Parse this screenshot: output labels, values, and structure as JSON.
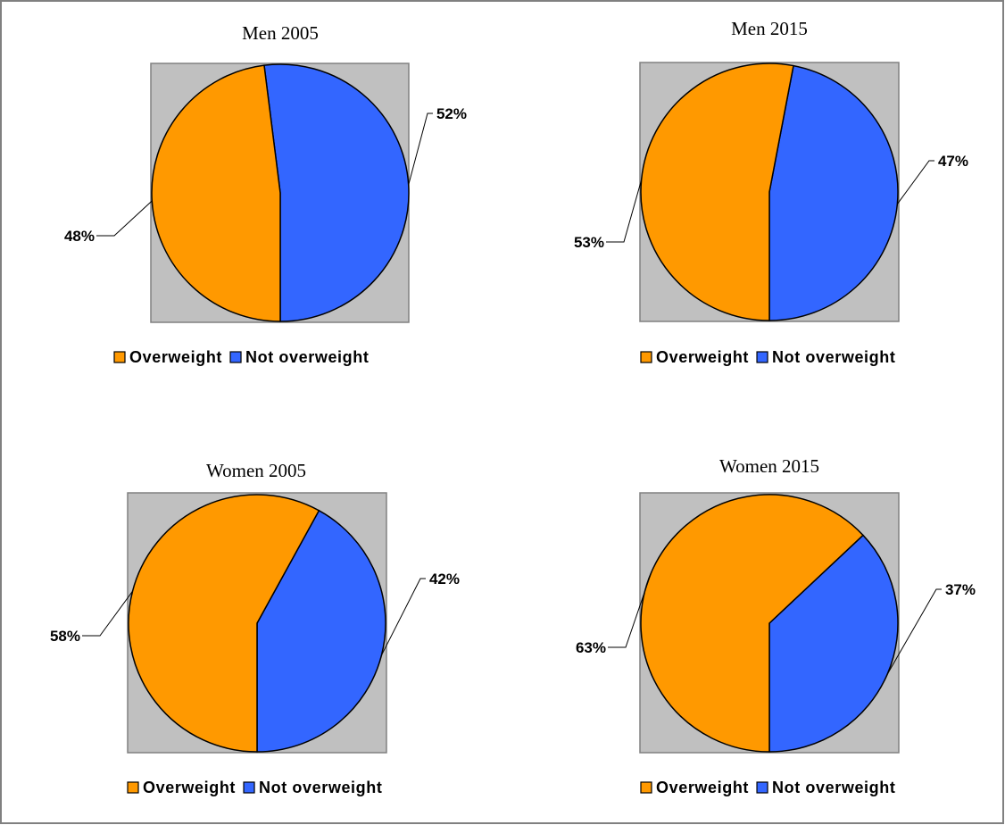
{
  "chart_data": [
    {
      "type": "pie",
      "title": "Men 2005",
      "categories": [
        "Overweight",
        "Not overweight"
      ],
      "values": [
        48,
        52
      ],
      "labels": [
        "48%",
        "52%"
      ],
      "colors": [
        "#FF9900",
        "#3366FF"
      ],
      "legend_position": "bottom"
    },
    {
      "type": "pie",
      "title": "Men 2015",
      "categories": [
        "Overweight",
        "Not overweight"
      ],
      "values": [
        53,
        47
      ],
      "labels": [
        "53%",
        "47%"
      ],
      "colors": [
        "#FF9900",
        "#3366FF"
      ],
      "legend_position": "bottom"
    },
    {
      "type": "pie",
      "title": "Women 2005",
      "categories": [
        "Overweight",
        "Not overweight"
      ],
      "values": [
        58,
        42
      ],
      "labels": [
        "58%",
        "42%"
      ],
      "colors": [
        "#FF9900",
        "#3366FF"
      ],
      "legend_position": "bottom"
    },
    {
      "type": "pie",
      "title": "Women 2015",
      "categories": [
        "Overweight",
        "Not overweight"
      ],
      "values": [
        63,
        37
      ],
      "labels": [
        "63%",
        "37%"
      ],
      "colors": [
        "#FF9900",
        "#3366FF"
      ],
      "legend_position": "bottom"
    }
  ],
  "style": {
    "plot_background": "#C0C0C0",
    "outline": "#000000",
    "border": "#808080"
  }
}
